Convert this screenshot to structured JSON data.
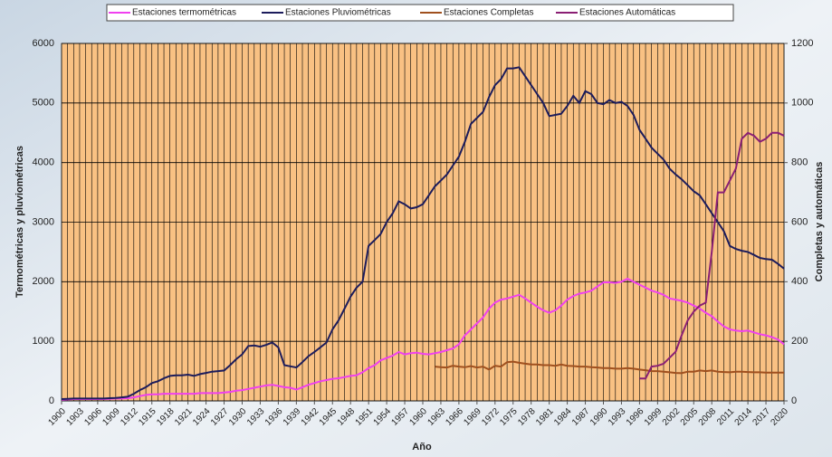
{
  "chart_data": {
    "type": "line",
    "ylabel": "Termométricas y pluviométricas",
    "y2label": "Completas y automáticas",
    "xlabel": "Año",
    "x": [
      1900,
      1901,
      1902,
      1903,
      1904,
      1905,
      1906,
      1907,
      1908,
      1909,
      1910,
      1911,
      1912,
      1913,
      1914,
      1915,
      1916,
      1917,
      1918,
      1919,
      1920,
      1921,
      1922,
      1923,
      1924,
      1925,
      1926,
      1927,
      1928,
      1929,
      1930,
      1931,
      1932,
      1933,
      1934,
      1935,
      1936,
      1937,
      1938,
      1939,
      1940,
      1941,
      1942,
      1943,
      1944,
      1945,
      1946,
      1947,
      1948,
      1949,
      1950,
      1951,
      1952,
      1953,
      1954,
      1955,
      1956,
      1957,
      1958,
      1959,
      1960,
      1961,
      1962,
      1963,
      1964,
      1965,
      1966,
      1967,
      1968,
      1969,
      1970,
      1971,
      1972,
      1973,
      1974,
      1975,
      1976,
      1977,
      1978,
      1979,
      1980,
      1981,
      1982,
      1983,
      1984,
      1985,
      1986,
      1987,
      1988,
      1989,
      1990,
      1991,
      1992,
      1993,
      1994,
      1995,
      1996,
      1997,
      1998,
      1999,
      2000,
      2001,
      2002,
      2003,
      2004,
      2005,
      2006,
      2007,
      2008,
      2009,
      2010,
      2011,
      2012,
      2013,
      2014,
      2015,
      2016,
      2017,
      2018,
      2019,
      2020
    ],
    "xlim": [
      1900,
      2020
    ],
    "xticks": [
      1900,
      1903,
      1906,
      1909,
      1912,
      1915,
      1918,
      1921,
      1924,
      1927,
      1930,
      1933,
      1936,
      1939,
      1942,
      1945,
      1948,
      1951,
      1954,
      1957,
      1960,
      1963,
      1966,
      1969,
      1972,
      1975,
      1978,
      1981,
      1984,
      1987,
      1990,
      1993,
      1996,
      1999,
      2002,
      2005,
      2008,
      2011,
      2014,
      2017,
      2020
    ],
    "ylim": [
      0,
      6000
    ],
    "yticks": [
      0,
      1000,
      2000,
      3000,
      4000,
      5000,
      6000
    ],
    "y2lim": [
      0,
      1200
    ],
    "y2ticks": [
      0,
      200,
      400,
      600,
      800,
      1000,
      1200
    ],
    "grid": true,
    "legend": "top",
    "series": [
      {
        "name": "Estaciones termométricas",
        "color": "#f040f0",
        "values": [
          20,
          25,
          30,
          30,
          30,
          30,
          30,
          30,
          35,
          40,
          40,
          45,
          60,
          80,
          100,
          110,
          110,
          120,
          120,
          120,
          120,
          120,
          120,
          130,
          130,
          130,
          130,
          140,
          150,
          170,
          180,
          200,
          220,
          240,
          260,
          270,
          250,
          230,
          220,
          190,
          230,
          270,
          300,
          330,
          350,
          370,
          380,
          400,
          420,
          430,
          480,
          550,
          600,
          680,
          720,
          760,
          820,
          780,
          800,
          810,
          790,
          780,
          800,
          820,
          850,
          880,
          950,
          1100,
          1200,
          1300,
          1400,
          1550,
          1650,
          1700,
          1720,
          1750,
          1780,
          1720,
          1650,
          1580,
          1520,
          1480,
          1520,
          1600,
          1700,
          1760,
          1800,
          1820,
          1850,
          1920,
          1990,
          1990,
          1980,
          2000,
          2050,
          2000,
          1950,
          1900,
          1850,
          1820,
          1780,
          1720,
          1700,
          1680,
          1650,
          1600,
          1550,
          1480,
          1420,
          1330,
          1250,
          1200,
          1180,
          1170,
          1180,
          1150,
          1120,
          1100,
          1070,
          1030,
          950
        ]
      },
      {
        "name": "Estaciones Pluviométricas",
        "color": "#1c1c5c",
        "values": [
          30,
          35,
          40,
          40,
          40,
          40,
          40,
          40,
          45,
          50,
          60,
          70,
          120,
          180,
          230,
          300,
          330,
          380,
          420,
          430,
          430,
          440,
          420,
          450,
          470,
          490,
          500,
          510,
          600,
          700,
          780,
          920,
          930,
          910,
          940,
          980,
          900,
          600,
          580,
          560,
          650,
          750,
          820,
          900,
          980,
          1200,
          1350,
          1550,
          1750,
          1900,
          2000,
          2600,
          2700,
          2800,
          3000,
          3150,
          3350,
          3300,
          3230,
          3250,
          3300,
          3450,
          3600,
          3700,
          3800,
          3950,
          4100,
          4350,
          4650,
          4750,
          4850,
          5100,
          5300,
          5400,
          5580,
          5580,
          5600,
          5450,
          5300,
          5150,
          5000,
          4780,
          4800,
          4820,
          4950,
          5120,
          5000,
          5200,
          5150,
          5000,
          4980,
          5050,
          5000,
          5020,
          4950,
          4800,
          4550,
          4400,
          4250,
          4150,
          4050,
          3900,
          3800,
          3720,
          3620,
          3520,
          3450,
          3300,
          3150,
          3000,
          2850,
          2600,
          2550,
          2520,
          2500,
          2450,
          2400,
          2380,
          2370,
          2300,
          2220
        ]
      },
      {
        "name": "Estaciones Completas",
        "color": "#a0501e",
        "axis": "y2",
        "values": [
          null,
          null,
          null,
          null,
          null,
          null,
          null,
          null,
          null,
          null,
          null,
          null,
          null,
          null,
          null,
          null,
          null,
          null,
          null,
          null,
          null,
          null,
          null,
          null,
          null,
          null,
          null,
          null,
          null,
          null,
          null,
          null,
          null,
          null,
          null,
          null,
          null,
          null,
          null,
          null,
          null,
          null,
          null,
          null,
          null,
          null,
          null,
          null,
          null,
          null,
          null,
          null,
          null,
          null,
          null,
          null,
          null,
          null,
          null,
          null,
          null,
          null,
          115,
          113,
          112,
          118,
          115,
          113,
          117,
          112,
          115,
          105,
          118,
          115,
          130,
          132,
          128,
          125,
          122,
          122,
          120,
          120,
          118,
          122,
          118,
          117,
          115,
          115,
          113,
          112,
          110,
          110,
          108,
          108,
          110,
          108,
          105,
          103,
          100,
          100,
          98,
          96,
          94,
          93,
          98,
          98,
          102,
          100,
          102,
          98,
          97,
          96,
          98,
          98,
          97,
          96,
          96,
          95,
          95,
          95,
          95
        ]
      },
      {
        "name": "Estaciones Automáticas",
        "color": "#8a1f74",
        "axis": "y2",
        "values": [
          null,
          null,
          null,
          null,
          null,
          null,
          null,
          null,
          null,
          null,
          null,
          null,
          null,
          null,
          null,
          null,
          null,
          null,
          null,
          null,
          null,
          null,
          null,
          null,
          null,
          null,
          null,
          null,
          null,
          null,
          null,
          null,
          null,
          null,
          null,
          null,
          null,
          null,
          null,
          null,
          null,
          null,
          null,
          null,
          null,
          null,
          null,
          null,
          null,
          null,
          null,
          null,
          null,
          null,
          null,
          null,
          null,
          null,
          null,
          null,
          null,
          null,
          null,
          null,
          null,
          null,
          null,
          null,
          null,
          null,
          null,
          null,
          null,
          null,
          null,
          null,
          null,
          null,
          null,
          null,
          null,
          null,
          null,
          null,
          null,
          null,
          null,
          null,
          null,
          null,
          null,
          null,
          null,
          null,
          null,
          null,
          75,
          75,
          115,
          118,
          125,
          145,
          165,
          220,
          270,
          300,
          320,
          330,
          500,
          700,
          700,
          740,
          780,
          880,
          900,
          890,
          870,
          880,
          900,
          900,
          890
        ]
      }
    ]
  }
}
